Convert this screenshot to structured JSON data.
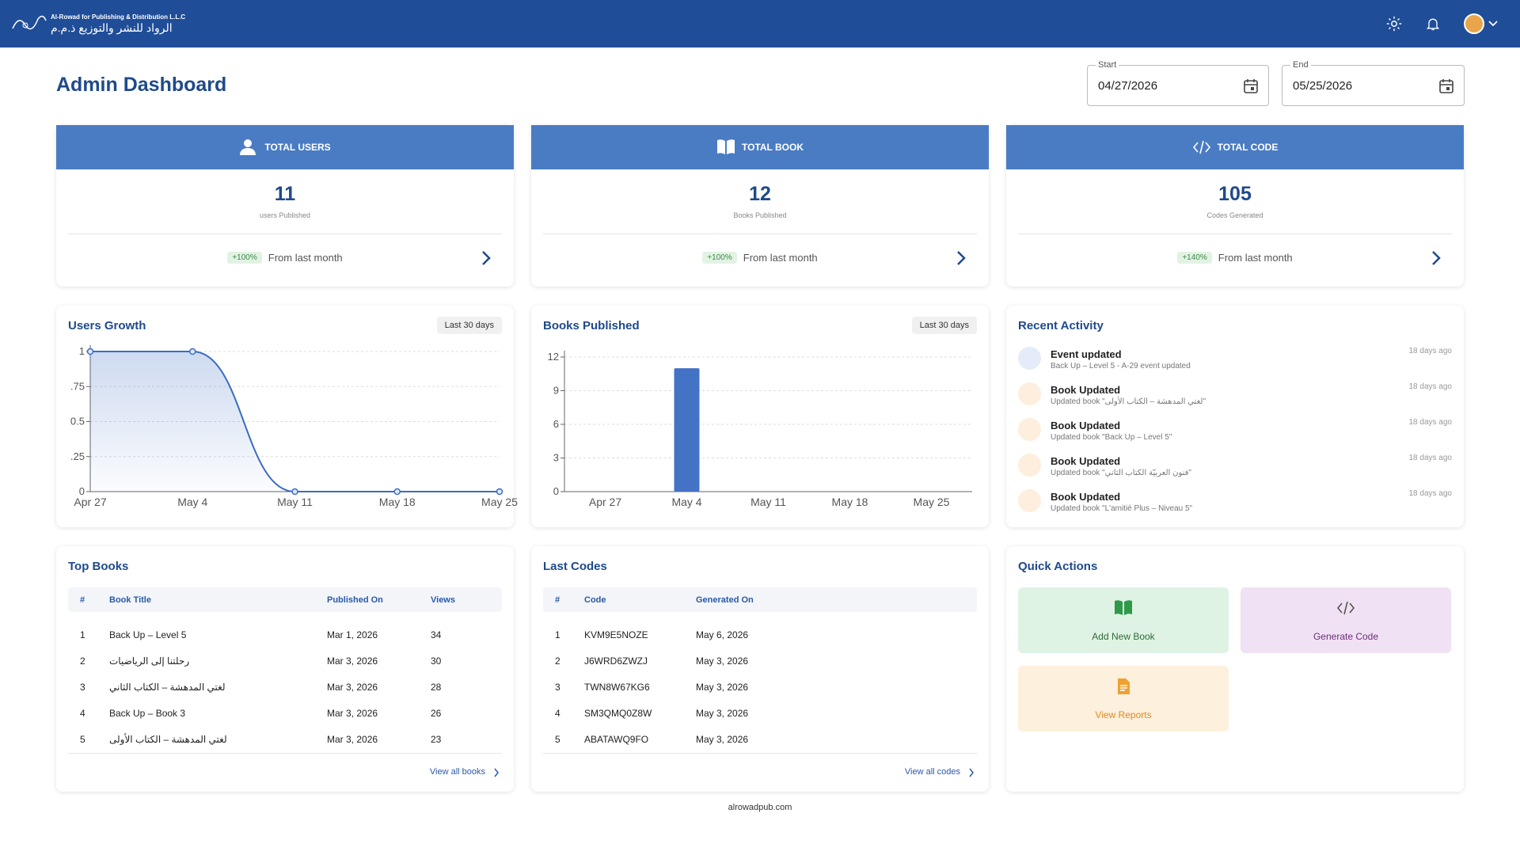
{
  "header": {
    "brand_en": "Al-Rowad for Publishing & Distribution L.L.C",
    "brand_ar": "الرواد للنشر والتوزيع ذ.م.م"
  },
  "page": {
    "title": "Admin Dashboard",
    "start_label": "Start",
    "start": "04/27/2026",
    "end_label": "End",
    "end": "05/25/2026"
  },
  "stats": [
    {
      "title": "TOTAL USERS",
      "value": 11,
      "caption": "users Published",
      "change": "+100%",
      "note": "From last month"
    },
    {
      "title": "TOTAL BOOK",
      "value": 12,
      "caption": "Books Published",
      "change": "+100%",
      "note": "From last month"
    },
    {
      "title": "TOTAL CODE",
      "value": 105,
      "caption": "Codes Generated",
      "change": "+140%",
      "note": "From last month"
    }
  ],
  "chart_data": [
    {
      "type": "line",
      "title": "Users Growth",
      "badge": "Last 30 days",
      "color": "#3a6cc4",
      "categories": [
        "Apr 27",
        "May 4",
        "May 11",
        "May 18",
        "May 25"
      ],
      "values": [
        1,
        1,
        0,
        0,
        0
      ],
      "ylim": [
        0,
        1
      ],
      "yticks": [
        0,
        {
          "value": 0.25,
          "label": ".25"
        },
        {
          "value": 0.5,
          "label": "0.5"
        },
        {
          "value": 0.75,
          "label": ".75"
        },
        1
      ],
      "grid": true
    },
    {
      "type": "bar",
      "title": "Books Published",
      "badge": "Last 30 days",
      "color": "#4472c4",
      "categories": [
        "Apr 27",
        "May 4",
        "May 11",
        "May 18",
        "May 25"
      ],
      "values": [
        0,
        11,
        0,
        0,
        0
      ],
      "ylim": [
        0,
        12
      ],
      "yticks": [
        0,
        3,
        6,
        9,
        12
      ],
      "grid": true
    }
  ],
  "activity": {
    "title": "Recent Activity",
    "items": [
      {
        "title": "Event updated",
        "detail": "Back Up – Level 5 - A-29 event updated",
        "time": "18 days ago"
      },
      {
        "title": "Book Updated",
        "detail": "Updated book \"لغتي المدهشة – الكتاب الأولى\"",
        "time": "18 days ago"
      },
      {
        "title": "Book Updated",
        "detail": "Updated book \"Back Up – Level 5\"",
        "time": "18 days ago"
      },
      {
        "title": "Book Updated",
        "detail": "Updated book \"فنون العربيّة الكتاب الثاني\"",
        "time": "18 days ago"
      },
      {
        "title": "Book Updated",
        "detail": "Updated book \"L'amitié Plus – Niveau 5\"",
        "time": "18 days ago"
      }
    ]
  },
  "top_books": {
    "title": "Top Books",
    "columns": [
      "#",
      "Book Title",
      "Published On",
      "Views"
    ],
    "rows": [
      [
        1,
        "Back Up – Level 5",
        "Mar 1, 2026",
        34
      ],
      [
        2,
        "رحلتنا إلى الرياضيات",
        "Mar 3, 2026",
        30
      ],
      [
        3,
        "لغتي المدهشة – الكتاب الثاني",
        "Mar 3, 2026",
        28
      ],
      [
        4,
        "Back Up – Book 3",
        "Mar 3, 2026",
        26
      ],
      [
        5,
        "لغتي المدهشة – الكتاب الأولى",
        "Mar 3, 2026",
        23
      ]
    ],
    "link": "View all books"
  },
  "last_codes": {
    "title": "Last Codes",
    "columns": [
      "#",
      "Code",
      "Generated On"
    ],
    "rows": [
      [
        1,
        "KVM9E5NOZE",
        "May 6, 2026"
      ],
      [
        2,
        "J6WRD6ZWZJ",
        "May 3, 2026"
      ],
      [
        3,
        "TWN8W67KG6",
        "May 3, 2026"
      ],
      [
        4,
        "SM3QMQ0Z8W",
        "May 3, 2026"
      ],
      [
        5,
        "ABATAWQ9FO",
        "May 3, 2026"
      ]
    ],
    "link": "View all codes"
  },
  "quick_actions": {
    "title": "Quick Actions",
    "items": [
      "Add New Book",
      "Generate Code",
      "View Reports"
    ]
  },
  "footer": {
    "site": "alrowadpub.com"
  }
}
